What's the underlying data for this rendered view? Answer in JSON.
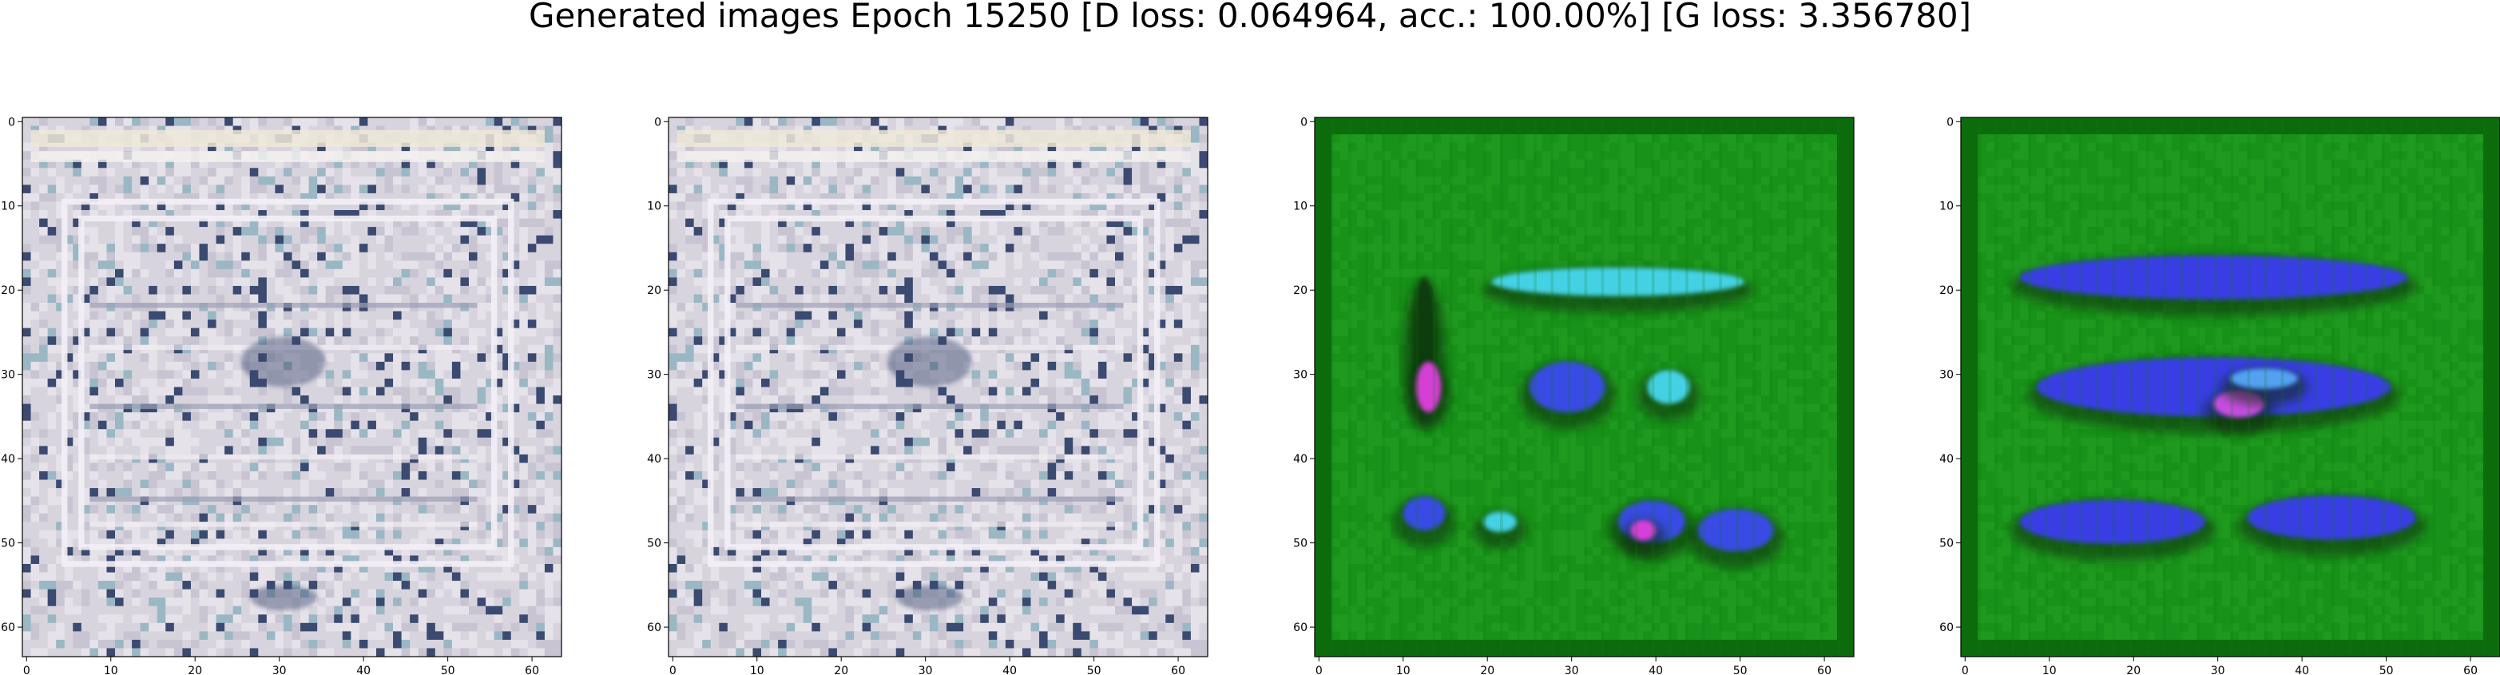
{
  "title": "Generated images Epoch 15250 [D loss: 0.064964, acc.: 100.00%] [G loss: 3.356780]",
  "chart_data": [
    {
      "type": "heatmap",
      "content": "generated image (pale white/lavender grid pattern)",
      "xlim": [
        0,
        63
      ],
      "ylim": [
        63,
        0
      ],
      "xticks": [
        0,
        10,
        20,
        30,
        40,
        50,
        60
      ],
      "yticks": [
        0,
        10,
        20,
        30,
        40,
        50,
        60
      ],
      "grid": false,
      "colors": {
        "base": "#d8d4de",
        "line": "#f4f0f6",
        "dark": "#3a4a70",
        "accent": "#9ab7c4"
      }
    },
    {
      "type": "heatmap",
      "content": "generated image (pale white/lavender grid pattern)",
      "xlim": [
        0,
        63
      ],
      "ylim": [
        63,
        0
      ],
      "xticks": [
        0,
        10,
        20,
        30,
        40,
        50,
        60
      ],
      "yticks": [
        0,
        10,
        20,
        30,
        40,
        50,
        60
      ],
      "grid": false,
      "colors": {
        "base": "#d8d4de",
        "line": "#f4f0f6",
        "dark": "#3a4a70",
        "accent": "#9ab7c4"
      }
    },
    {
      "type": "heatmap",
      "content": "generated image (green background with cyan/blue/magenta blobs)",
      "xlim": [
        0,
        63
      ],
      "ylim": [
        63,
        0
      ],
      "xticks": [
        0,
        10,
        20,
        30,
        40,
        50,
        60
      ],
      "yticks": [
        0,
        10,
        20,
        30,
        40,
        50,
        60
      ],
      "grid": false,
      "colors": {
        "base": "#1f9a1f",
        "edge": "#0c6c0c",
        "blob": "#3a4cf0",
        "cyan": "#46d8f0",
        "magenta": "#e040e0"
      }
    },
    {
      "type": "heatmap",
      "content": "generated image (green background with three rows of blue blobs)",
      "xlim": [
        0,
        63
      ],
      "ylim": [
        63,
        0
      ],
      "xticks": [
        0,
        10,
        20,
        30,
        40,
        50,
        60
      ],
      "yticks": [
        0,
        10,
        20,
        30,
        40,
        50,
        60
      ],
      "grid": false,
      "colors": {
        "base": "#1f9a1f",
        "edge": "#0c6c0c",
        "blob": "#3a3cf0",
        "cyan": "#56a8f8",
        "magenta": "#d050e8"
      }
    }
  ]
}
